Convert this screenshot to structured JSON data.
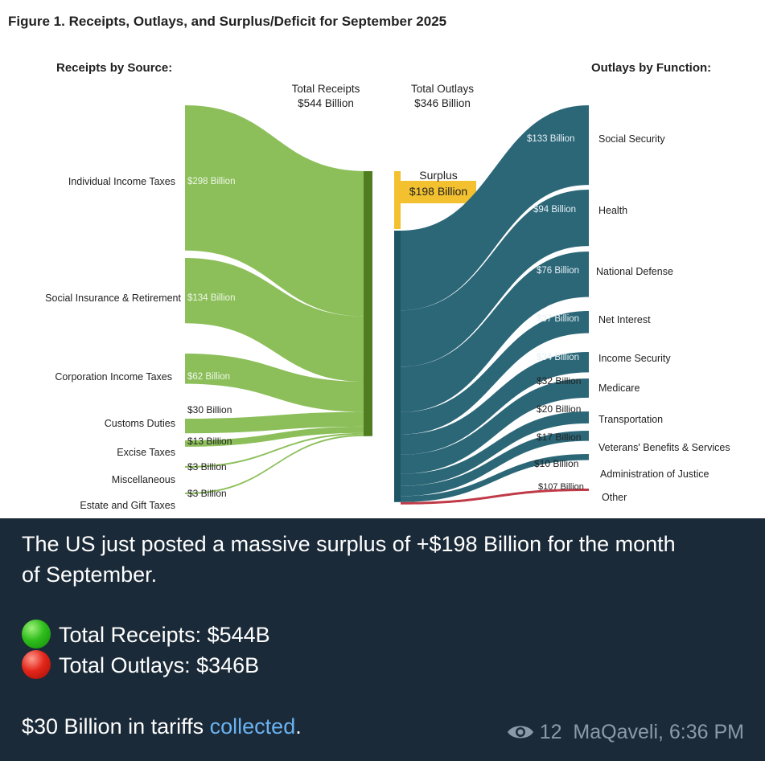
{
  "figure": {
    "title": "Figure 1. Receipts, Outlays, and Surplus/Deficit for September 2025",
    "receipts_header": "Receipts by Source:",
    "outlays_header": "Outlays by Function:",
    "total_receipts_label": "Total Receipts",
    "total_receipts_value": "$544 Billion",
    "total_outlays_label": "Total Outlays",
    "total_outlays_value": "$346 Billion",
    "surplus_label": "Surplus",
    "surplus_value": "$198 Billion",
    "colors": {
      "receipts": "#8cbf5a",
      "outlays": "#2c6778",
      "surplus": "#f3c130",
      "other": "#c03a48"
    }
  },
  "chart_data": {
    "type": "sankey",
    "title": "Figure 1. Receipts, Outlays, and Surplus/Deficit for September 2025",
    "receipts": [
      {
        "name": "Individual Income Taxes",
        "label": "$298 Billion",
        "value": 298
      },
      {
        "name": "Social Insurance & Retirement",
        "label": "$134 Billion",
        "value": 134
      },
      {
        "name": "Corporation Income Taxes",
        "label": "$62 Billion",
        "value": 62
      },
      {
        "name": "Customs Duties",
        "label": "$30 Billion",
        "value": 30
      },
      {
        "name": "Excise Taxes",
        "label": "$13 Billion",
        "value": 13
      },
      {
        "name": "Miscellaneous",
        "label": "$3 Billion",
        "value": 3
      },
      {
        "name": "Estate and Gift Taxes",
        "label": "$3 Billion",
        "value": 3
      }
    ],
    "outlays": [
      {
        "name": "Social Security",
        "label": "$133 Billion",
        "value": 133
      },
      {
        "name": "Health",
        "label": "$94 Billion",
        "value": 94
      },
      {
        "name": "National Defense",
        "label": "$76 Billion",
        "value": 76
      },
      {
        "name": "Net Interest",
        "label": "$37 Billion",
        "value": 37
      },
      {
        "name": "Income Security",
        "label": "$34 Billion",
        "value": 34
      },
      {
        "name": "Medicare",
        "label": "$32 Billion",
        "value": 32
      },
      {
        "name": "Transportation",
        "label": "$20 Billion",
        "value": 20
      },
      {
        "name": "Veterans' Benefits & Services",
        "label": "$17 Billion",
        "value": 17
      },
      {
        "name": "Administration of Justice",
        "label": "$10 Billion",
        "value": 10
      },
      {
        "name": "Other",
        "label": "$107 Billion",
        "value": -107
      }
    ],
    "total_receipts": 544,
    "total_outlays": 346,
    "surplus": 198
  },
  "message": {
    "line1": "The US just posted a massive surplus of +$198 Billion for the month",
    "line2": "of September.",
    "receipts_line": "Total Receipts: $544B",
    "outlays_line": "Total Outlays: $346B",
    "tariff_prefix": "$30 Billion in tariffs ",
    "tariff_link": "collected",
    "tariff_suffix": ".",
    "green_icon": "green-circle-icon",
    "red_icon": "red-circle-icon"
  },
  "meta": {
    "views": "12",
    "author_time": "MaQaveli, 6:36 PM"
  }
}
